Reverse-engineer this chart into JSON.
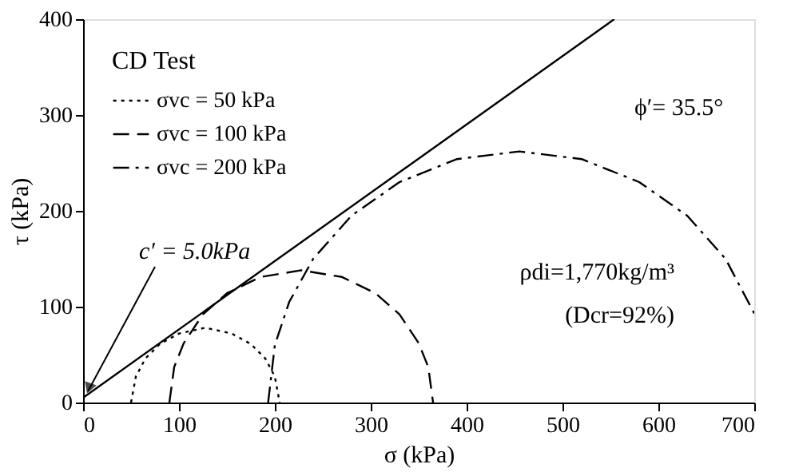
{
  "chart_data": {
    "type": "line",
    "xlabel": "σ (kPa)",
    "ylabel": "τ (kPa)",
    "legend_title": "CD Test",
    "legend": "top left",
    "grid": false,
    "marker": "none",
    "xlim": [
      0,
      700
    ],
    "ylim": [
      0,
      400
    ],
    "xticks": [
      0,
      100,
      200,
      300,
      400,
      500,
      600,
      700
    ],
    "yticks": [
      0,
      100,
      200,
      300,
      400
    ],
    "series": [
      {
        "name": "σvc = 50 kPa",
        "color": "#000000",
        "line_style": "dotted",
        "x": [
          50,
          55,
          65,
          80,
          100,
          127.5,
          155,
          175,
          190,
          200,
          205
        ],
        "values": [
          0,
          27,
          46,
          61,
          72,
          78,
          72,
          61,
          46,
          27,
          0
        ]
      },
      {
        "name": "σvc = 100 kPa",
        "color": "#000000",
        "line_style": "dashed",
        "x": [
          90,
          95,
          105,
          125,
          150,
          185,
          227.5,
          270,
          305,
          330,
          350,
          360,
          365
        ],
        "values": [
          0,
          37,
          62,
          92,
          114,
          131,
          138,
          131,
          114,
          92,
          62,
          37,
          0
        ]
      },
      {
        "name": "σvc = 200 kPa",
        "color": "#000000",
        "line_style": "dashdot",
        "x": [
          193,
          200,
          215,
          240,
          280,
          330,
          390,
          455,
          520,
          580,
          630,
          670,
          700
        ],
        "values": [
          0,
          60,
          105,
          150,
          195,
          230,
          254,
          262,
          254,
          230,
          195,
          150,
          93
        ]
      },
      {
        "color": "#000000",
        "line_style": "solid",
        "x": [
          0,
          554
        ],
        "values": [
          5,
          400
        ]
      }
    ],
    "annotations": [
      {
        "text": "c′ = 5.0kPa",
        "x": 0,
        "y": 5
      },
      "ϕ′= 35.5°",
      "ρdi=1,770kg/m³",
      "(Dcr=92%)"
    ]
  }
}
